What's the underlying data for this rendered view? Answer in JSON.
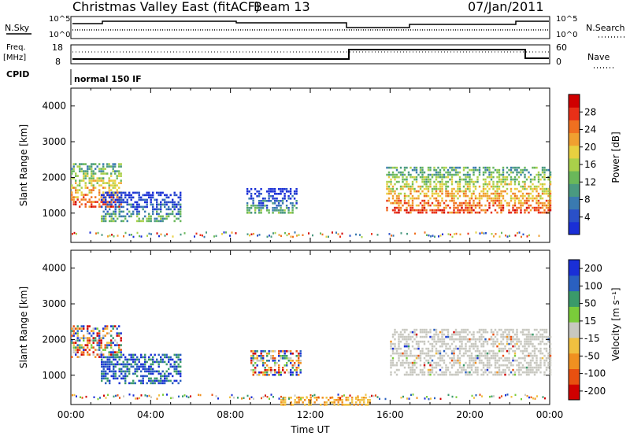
{
  "header": {
    "title": "Christmas Valley East (fitACF)",
    "beam": "Beam 13",
    "date": "07/Jan/2011"
  },
  "status": {
    "nsky_label": "N.Sky",
    "nsky_ticks": [
      "10^5",
      "10^0"
    ],
    "nsearch_label": "N.Search",
    "nsearch_ticks": [
      "10^5",
      "10^0"
    ],
    "freq_label": "Freq.",
    "freq_unit": "[MHz]",
    "freq_ticks": [
      "18",
      "8"
    ],
    "nave_label": "Nave",
    "nave_ticks": [
      "60",
      "0"
    ],
    "cpid_label": "CPID",
    "cpid_value": "normal 150 IF"
  },
  "chart_data": [
    {
      "type": "heatmap",
      "panel": "power",
      "ylabel": "Slant Range [km]",
      "yticks": [
        "1000",
        "2000",
        "3000",
        "4000"
      ],
      "ylim": [
        180,
        4500
      ],
      "xlim": [
        0,
        24
      ],
      "xticks": [
        "00:00",
        "04:00",
        "08:00",
        "12:00",
        "16:00",
        "20:00",
        "00:00"
      ],
      "colorbar": {
        "label": "Power [dB]",
        "ticks": [
          "4",
          "8",
          "12",
          "16",
          "20",
          "24",
          "28"
        ],
        "range": [
          0,
          30
        ]
      },
      "regions": [
        {
          "t": [
            0.0,
            2.5
          ],
          "r": [
            1200,
            2400
          ],
          "level": "high"
        },
        {
          "t": [
            1.5,
            5.5
          ],
          "r": [
            800,
            1600
          ],
          "level": "low-mid"
        },
        {
          "t": [
            8.8,
            11.3
          ],
          "r": [
            1000,
            1700
          ],
          "level": "low-mid"
        },
        {
          "t": [
            15.8,
            24.0
          ],
          "r": [
            1000,
            2300
          ],
          "level": "high"
        }
      ]
    },
    {
      "type": "heatmap",
      "panel": "velocity",
      "ylabel": "Slant Range [km]",
      "yticks": [
        "1000",
        "2000",
        "3000",
        "4000"
      ],
      "ylim": [
        180,
        4500
      ],
      "xlim": [
        0,
        24
      ],
      "xticks": [
        "00:00",
        "04:00",
        "08:00",
        "12:00",
        "16:00",
        "20:00",
        "00:00"
      ],
      "xlabel": "Time UT",
      "colorbar": {
        "label": "Velocity [m s⁻¹]",
        "ticks": [
          "200",
          "100",
          "50",
          "15",
          "-15",
          "-50",
          "-100",
          "-200"
        ]
      },
      "regions": [
        {
          "t": [
            0.0,
            2.5
          ],
          "r": [
            1500,
            2400
          ],
          "level": "mixed"
        },
        {
          "t": [
            1.5,
            5.5
          ],
          "r": [
            800,
            1600
          ],
          "level": "toward"
        },
        {
          "t": [
            9.0,
            11.5
          ],
          "r": [
            1000,
            1700
          ],
          "level": "mixed"
        },
        {
          "t": [
            10.5,
            15.0
          ],
          "r": [
            180,
            400
          ],
          "level": "away"
        },
        {
          "t": [
            16.0,
            24.0
          ],
          "r": [
            1000,
            2300
          ],
          "level": "ground"
        }
      ]
    }
  ],
  "colors": {
    "power": [
      "#1a2fd6",
      "#2a50c8",
      "#3a7ab0",
      "#4a9a80",
      "#6ab85a",
      "#aad04a",
      "#e8d040",
      "#f0a030",
      "#f07020",
      "#e83018",
      "#d00000"
    ],
    "velocity": [
      "#1a2fd6",
      "#2a60c0",
      "#3a9a6a",
      "#7acc3a",
      "#c8c8c0",
      "#f0c040",
      "#f09020",
      "#e85010",
      "#d00000"
    ]
  }
}
